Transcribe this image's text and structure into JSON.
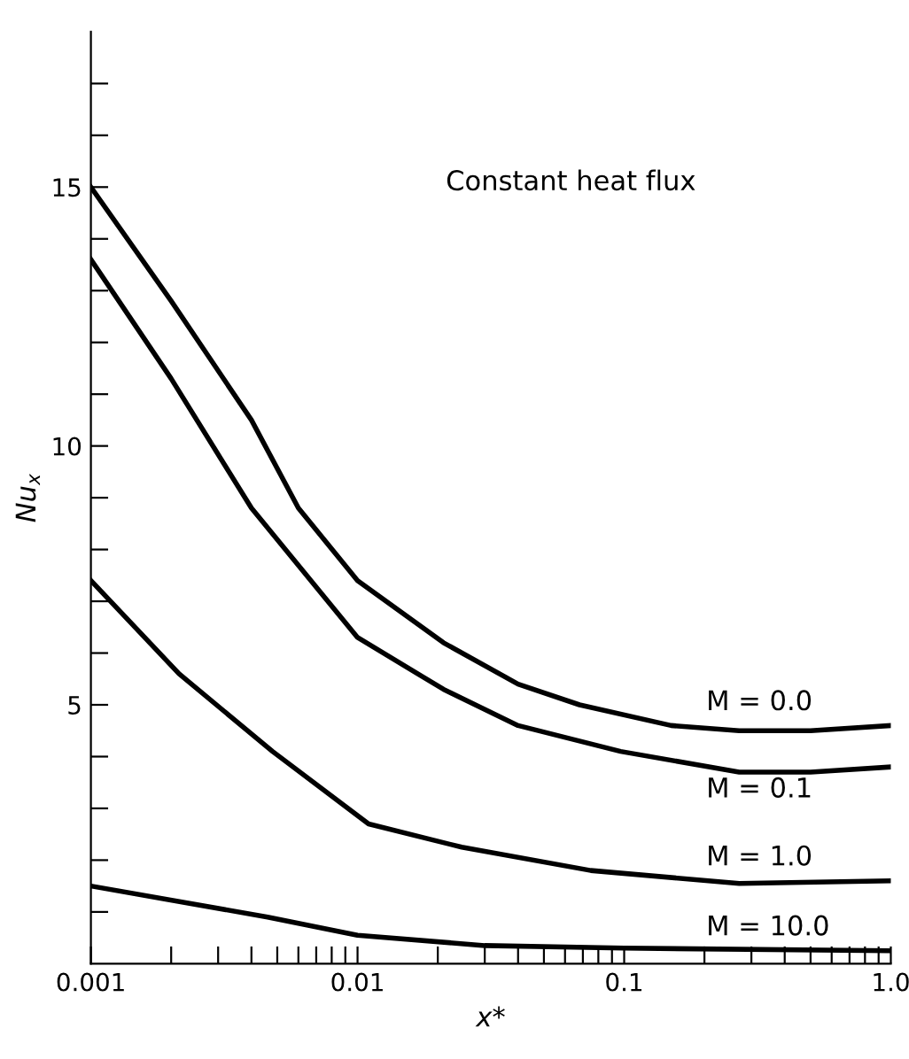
{
  "chart_data": {
    "type": "line",
    "xlabel": "x*",
    "ylabel": "Nu$_{x}$",
    "log": "x",
    "annotations": [
      "Constant heat flux"
    ],
    "series": [
      {
        "name": "M = 0.0",
        "color": "#000000",
        "x": [
          0.001,
          0.002,
          0.004,
          0.006,
          0.01,
          0.021,
          0.04,
          0.068,
          0.15,
          0.27,
          0.5,
          1.0
        ],
        "values": [
          15.0,
          12.8,
          10.5,
          8.8,
          7.4,
          6.2,
          5.4,
          5.0,
          4.6,
          4.5,
          4.5,
          4.6
        ]
      },
      {
        "name": "M = 0.1",
        "color": "#000000",
        "x": [
          0.001,
          0.002,
          0.004,
          0.01,
          0.021,
          0.04,
          0.097,
          0.27,
          0.5,
          1.0
        ],
        "values": [
          13.6,
          11.3,
          8.8,
          6.3,
          5.3,
          4.6,
          4.1,
          3.7,
          3.7,
          3.8
        ]
      },
      {
        "name": "M = 1.0",
        "color": "#000000",
        "x": [
          0.001,
          0.00214,
          0.0048,
          0.011,
          0.0246,
          0.075,
          0.27,
          1.0
        ],
        "values": [
          7.4,
          5.6,
          4.1,
          2.7,
          2.25,
          1.8,
          1.55,
          1.6
        ]
      },
      {
        "name": "M = 10.0",
        "color": "#000000",
        "x": [
          0.001,
          0.0046,
          0.01,
          0.03,
          0.1,
          1.0
        ],
        "values": [
          1.5,
          0.9,
          0.55,
          0.35,
          0.3,
          0.25
        ]
      }
    ],
    "xlim": [
      0.001,
      1.0
    ],
    "ylim": [
      0,
      18
    ],
    "xticks": [
      {
        "value": 0.001,
        "label": "0.001"
      },
      {
        "value": 0.002,
        "label": null
      },
      {
        "value": 0.003,
        "label": null
      },
      {
        "value": 0.004,
        "label": null
      },
      {
        "value": 0.005,
        "label": null
      },
      {
        "value": 0.006,
        "label": null
      },
      {
        "value": 0.007,
        "label": null
      },
      {
        "value": 0.008,
        "label": null
      },
      {
        "value": 0.009,
        "label": null
      },
      {
        "value": 0.01,
        "label": "0.01"
      },
      {
        "value": 0.02,
        "label": null
      },
      {
        "value": 0.03,
        "label": null
      },
      {
        "value": 0.04,
        "label": null
      },
      {
        "value": 0.05,
        "label": null
      },
      {
        "value": 0.06,
        "label": null
      },
      {
        "value": 0.07,
        "label": null
      },
      {
        "value": 0.08,
        "label": null
      },
      {
        "value": 0.09,
        "label": null
      },
      {
        "value": 0.1,
        "label": "0.1"
      },
      {
        "value": 0.2,
        "label": null
      },
      {
        "value": 0.3,
        "label": null
      },
      {
        "value": 0.4,
        "label": null
      },
      {
        "value": 0.5,
        "label": null
      },
      {
        "value": 0.6,
        "label": null
      },
      {
        "value": 0.7,
        "label": null
      },
      {
        "value": 0.8,
        "label": null
      },
      {
        "value": 0.9,
        "label": null
      },
      {
        "value": 1.0,
        "label": "1.0"
      }
    ],
    "yticks": [
      {
        "value": 1,
        "label": null
      },
      {
        "value": 2,
        "label": null
      },
      {
        "value": 3,
        "label": null
      },
      {
        "value": 4,
        "label": null
      },
      5,
      {
        "value": 6,
        "label": null
      },
      {
        "value": 7,
        "label": null
      },
      {
        "value": 8,
        "label": null
      },
      {
        "value": 9,
        "label": null
      },
      10,
      {
        "value": 11,
        "label": null
      },
      {
        "value": 12,
        "label": null
      },
      {
        "value": 13,
        "label": null
      },
      {
        "value": 14,
        "label": null
      },
      15,
      {
        "value": 16,
        "label": null
      },
      {
        "value": 17,
        "label": null
      }
    ],
    "grid": false,
    "legend": false,
    "line_style": "solid",
    "marker": "none"
  }
}
